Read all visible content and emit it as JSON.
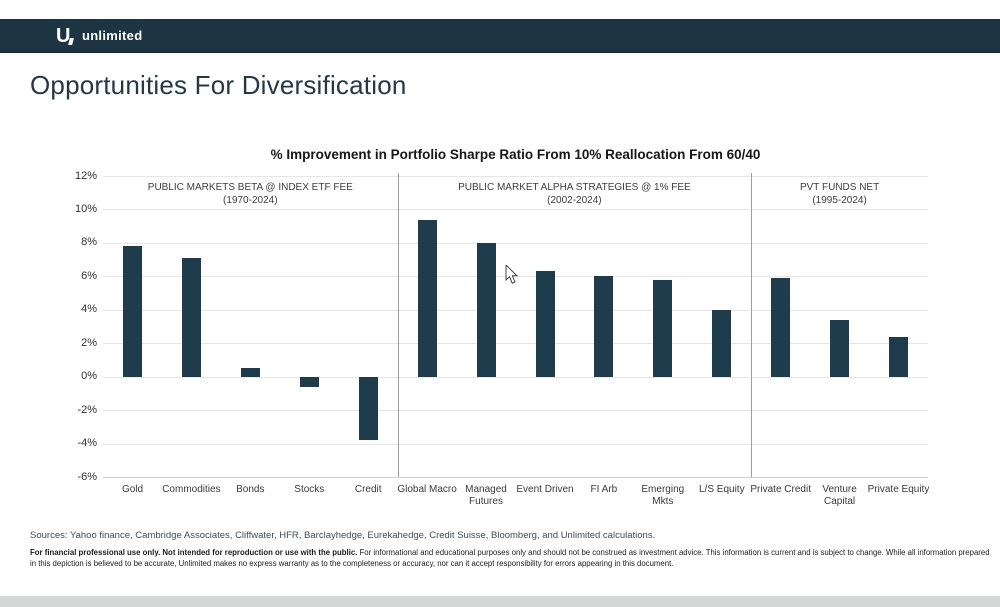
{
  "header": {
    "brand": "unlimited"
  },
  "page": {
    "title": "Opportunities For Diversification"
  },
  "chart_data": {
    "type": "bar",
    "title": "% Improvement in Portfolio Sharpe Ratio From 10% Reallocation From 60/40",
    "ylabel": "",
    "xlabel": "",
    "ylim": [
      -6,
      12
    ],
    "ytick_step": 2,
    "ytick_suffix": "%",
    "grid": true,
    "bar_color": "#1e3c4b",
    "sections": [
      {
        "label": "PUBLIC MARKETS BETA @ INDEX ETF FEE",
        "sublabel": "(1970-2024)",
        "categories": [
          "Gold",
          "Commodities",
          "Bonds",
          "Stocks",
          "Credit"
        ],
        "values": [
          7.8,
          7.1,
          0.5,
          -0.6,
          -3.8
        ]
      },
      {
        "label": "PUBLIC MARKET ALPHA STRATEGIES @ 1% FEE",
        "sublabel": "(2002-2024)",
        "categories": [
          "Global Macro",
          "Managed\nFutures",
          "Event Driven",
          "FI Arb",
          "Emerging\nMkts",
          "L/S Equity"
        ],
        "values": [
          9.4,
          8.0,
          6.3,
          6.0,
          5.8,
          4.0
        ]
      },
      {
        "label": "PVT FUNDS NET",
        "sublabel": "(1995-2024)",
        "categories": [
          "Private Credit",
          "Venture\nCapital",
          "Private Equity"
        ],
        "values": [
          5.9,
          3.4,
          2.4
        ]
      }
    ]
  },
  "footer": {
    "sources": "Sources: Yahoo finance, Cambridge Associates, Cliffwater, HFR, Barclayhedge, Eurekahedge, Credit Suisse, Bloomberg, and Unlimited calculations.",
    "disclaimer_bold": "For financial professional use only.  Not intended for reproduction or use with the public.",
    "disclaimer_line1_rest": " For informational and educational purposes only and should not be construed as investment advice. This information is current and is subject to change. While all information prepared",
    "disclaimer_line2": "in this depiction is believed to be accurate, Unlimited makes no express warranty as to the completeness or accuracy, nor can it accept responsibility for errors appearing in this document."
  }
}
